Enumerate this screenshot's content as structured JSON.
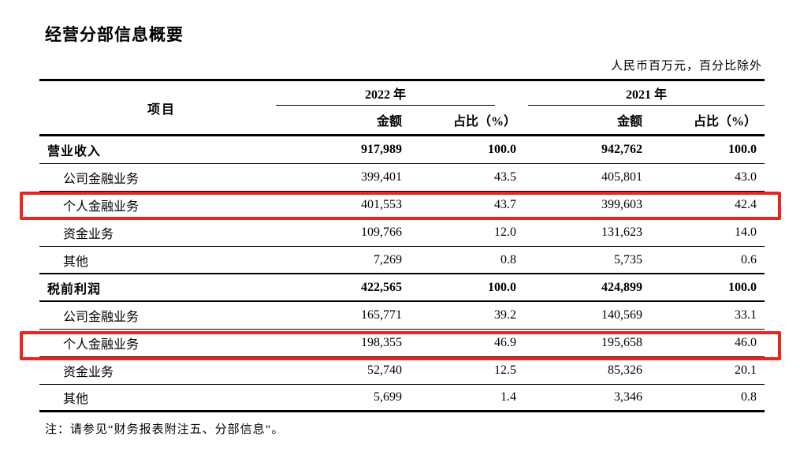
{
  "document": {
    "title": "经营分部信息概要",
    "unit_note": "人民币百万元，百分比除外",
    "footnote": "注：请参见“财务报表附注五、分部信息”。"
  },
  "table": {
    "item_header": "项目",
    "groups": [
      {
        "year": "2022 年",
        "amount_label": "金额",
        "ratio_label": "占比（%）"
      },
      {
        "year": "2021 年",
        "amount_label": "金额",
        "ratio_label": "占比（%）"
      }
    ],
    "highlight_color": "#e8261f",
    "rows": [
      {
        "label": "营业收入",
        "v2022": "917,989",
        "p2022": "100.0",
        "v2021": "942,762",
        "p2021": "100.0"
      },
      {
        "label": "公司金融业务",
        "v2022": "399,401",
        "p2022": "43.5",
        "v2021": "405,801",
        "p2021": "43.0"
      },
      {
        "label": "个人金融业务",
        "v2022": "401,553",
        "p2022": "43.7",
        "v2021": "399,603",
        "p2021": "42.4"
      },
      {
        "label": "资金业务",
        "v2022": "109,766",
        "p2022": "12.0",
        "v2021": "131,623",
        "p2021": "14.0"
      },
      {
        "label": "其他",
        "v2022": "7,269",
        "p2022": "0.8",
        "v2021": "5,735",
        "p2021": "0.6"
      },
      {
        "label": "税前利润",
        "v2022": "422,565",
        "p2022": "100.0",
        "v2021": "424,899",
        "p2021": "100.0"
      },
      {
        "label": "公司金融业务",
        "v2022": "165,771",
        "p2022": "39.2",
        "v2021": "140,569",
        "p2021": "33.1"
      },
      {
        "label": "个人金融业务",
        "v2022": "198,355",
        "p2022": "46.9",
        "v2021": "195,658",
        "p2021": "46.0"
      },
      {
        "label": "资金业务",
        "v2022": "52,740",
        "p2022": "12.5",
        "v2021": "85,326",
        "p2021": "20.1"
      },
      {
        "label": "其他",
        "v2022": "5,699",
        "p2022": "1.4",
        "v2021": "3,346",
        "p2021": "0.8"
      }
    ]
  }
}
